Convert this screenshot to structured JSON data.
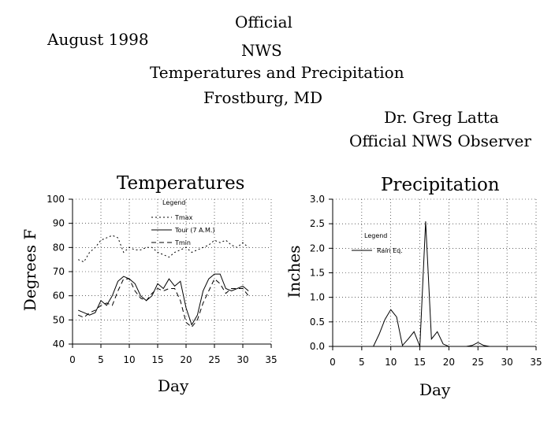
{
  "header": {
    "month": "August 1998",
    "line1": "Official",
    "line2": "NWS",
    "line3": "Temperatures and Precipitation",
    "line4": "Frostburg, MD",
    "observer": "Dr. Greg Latta",
    "observer_role": "Official NWS Observer"
  },
  "chart_data": [
    {
      "type": "line",
      "title": "Temperatures",
      "xlabel": "Day",
      "ylabel": "Degrees F",
      "xlim": [
        0,
        35
      ],
      "ylim": [
        40,
        100
      ],
      "xticks": [
        "0",
        "5",
        "10",
        "15",
        "20",
        "25",
        "30",
        "35"
      ],
      "yticks": [
        "40",
        "50",
        "60",
        "70",
        "80",
        "90",
        "100"
      ],
      "grid": true,
      "legend_title": "Legend",
      "legend_position": "top-center",
      "series": [
        {
          "name": "Tmax",
          "style": "dotted",
          "x": [
            1,
            2,
            3,
            4,
            5,
            6,
            7,
            8,
            9,
            10,
            11,
            12,
            13,
            14,
            15,
            16,
            17,
            18,
            19,
            20,
            21,
            22,
            23,
            24,
            25,
            26,
            27,
            28,
            29,
            30,
            31
          ],
          "values": [
            75,
            74,
            78,
            80,
            83,
            84,
            85,
            84,
            78,
            80,
            79,
            79,
            80,
            80,
            78,
            77,
            76,
            78,
            79,
            80,
            78,
            79,
            80,
            81,
            83,
            82,
            83,
            81,
            80,
            82,
            80
          ]
        },
        {
          "name": "Tour (7 A.M.)",
          "style": "solid",
          "x": [
            1,
            2,
            3,
            4,
            5,
            6,
            7,
            8,
            9,
            10,
            11,
            12,
            13,
            14,
            15,
            16,
            17,
            18,
            19,
            20,
            21,
            22,
            23,
            24,
            25,
            26,
            27,
            28,
            29,
            30,
            31
          ],
          "values": [
            54,
            53,
            52,
            53,
            58,
            56,
            60,
            66,
            68,
            67,
            65,
            60,
            58,
            60,
            65,
            63,
            67,
            64,
            66,
            55,
            48,
            52,
            62,
            67,
            69,
            69,
            63,
            62,
            63,
            64,
            62
          ]
        },
        {
          "name": "Tmin",
          "style": "dashed",
          "x": [
            1,
            2,
            3,
            4,
            5,
            6,
            7,
            8,
            9,
            10,
            11,
            12,
            13,
            14,
            15,
            16,
            17,
            18,
            19,
            20,
            21,
            22,
            23,
            24,
            25,
            26,
            27,
            28,
            29,
            30,
            31
          ],
          "values": [
            52,
            51,
            53,
            54,
            56,
            57,
            56,
            62,
            67,
            67,
            62,
            59,
            58,
            61,
            63,
            62,
            63,
            63,
            58,
            49,
            47,
            50,
            57,
            62,
            67,
            65,
            61,
            63,
            63,
            63,
            60
          ]
        }
      ]
    },
    {
      "type": "line",
      "title": "Precipitation",
      "xlabel": "Day",
      "ylabel": "Inches",
      "xlim": [
        0,
        35
      ],
      "ylim": [
        0,
        3.0
      ],
      "xticks": [
        "0",
        "5",
        "10",
        "15",
        "20",
        "25",
        "30",
        "35"
      ],
      "yticks": [
        "0.0",
        "0.5",
        "1.0",
        "1.5",
        "2.0",
        "2.5",
        "3.0"
      ],
      "grid": true,
      "legend_title": "Legend",
      "legend_position": "center-left",
      "series": [
        {
          "name": "Rain Eq.",
          "style": "solid",
          "x": [
            1,
            2,
            3,
            4,
            5,
            6,
            7,
            8,
            9,
            10,
            11,
            12,
            13,
            14,
            15,
            16,
            17,
            18,
            19,
            20,
            21,
            22,
            23,
            24,
            25,
            26,
            27,
            28,
            29,
            30,
            31
          ],
          "values": [
            0,
            0,
            0,
            0,
            0,
            0,
            0,
            0.25,
            0.55,
            0.75,
            0.6,
            0.02,
            0.15,
            0.3,
            0,
            2.55,
            0.15,
            0.3,
            0.05,
            0,
            0,
            0,
            0,
            0.02,
            0.08,
            0.02,
            0,
            0,
            0,
            0,
            0
          ]
        }
      ]
    }
  ]
}
